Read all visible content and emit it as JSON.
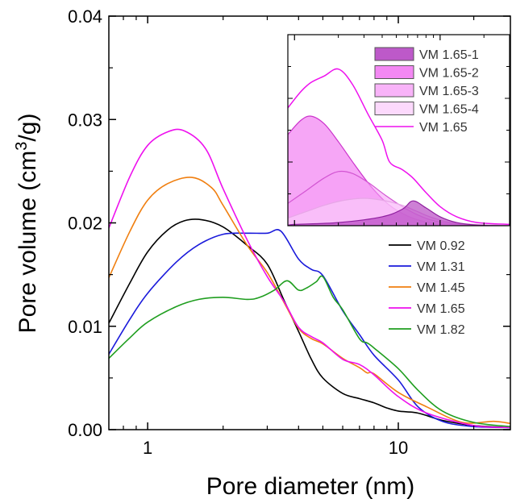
{
  "chart_data": {
    "type": "line",
    "xlabel": "Pore diameter (nm)",
    "ylabel_main": "Pore volume (cm",
    "ylabel_sup": "3",
    "ylabel_end": "/g)",
    "x_scale": "log",
    "xlim": [
      0.7,
      28
    ],
    "ylim": [
      0,
      0.04
    ],
    "x_ticks": [
      {
        "value": 1,
        "label": "1"
      },
      {
        "value": 10,
        "label": "10"
      }
    ],
    "y_ticks": [
      {
        "value": 0.0,
        "label": "0.00"
      },
      {
        "value": 0.01,
        "label": "0.01"
      },
      {
        "value": 0.02,
        "label": "0.02"
      },
      {
        "value": 0.03,
        "label": "0.03"
      },
      {
        "value": 0.04,
        "label": "0.04"
      }
    ],
    "legend_position": "right",
    "series": [
      {
        "name": "VM 0.92",
        "color": "#000000",
        "points": [
          [
            0.7,
            0.0103
          ],
          [
            0.85,
            0.0142
          ],
          [
            1.0,
            0.0172
          ],
          [
            1.2,
            0.0193
          ],
          [
            1.4,
            0.0202
          ],
          [
            1.65,
            0.0203
          ],
          [
            2.0,
            0.0196
          ],
          [
            2.5,
            0.0178
          ],
          [
            3.0,
            0.016
          ],
          [
            3.5,
            0.0125
          ],
          [
            4.0,
            0.0095
          ],
          [
            4.5,
            0.0068
          ],
          [
            5.0,
            0.005
          ],
          [
            6.0,
            0.0035
          ],
          [
            7.0,
            0.003
          ],
          [
            8.0,
            0.0026
          ],
          [
            9.0,
            0.0021
          ],
          [
            10.0,
            0.0018
          ],
          [
            12.0,
            0.0016
          ],
          [
            15.0,
            0.0009
          ],
          [
            20.0,
            0.0004
          ],
          [
            28.0,
            0.0002
          ]
        ]
      },
      {
        "name": "VM 1.31",
        "color": "#1a1adb",
        "points": [
          [
            0.7,
            0.0073
          ],
          [
            0.85,
            0.0107
          ],
          [
            1.0,
            0.0132
          ],
          [
            1.3,
            0.0162
          ],
          [
            1.6,
            0.0179
          ],
          [
            2.0,
            0.0189
          ],
          [
            2.5,
            0.019
          ],
          [
            3.0,
            0.019
          ],
          [
            3.4,
            0.0192
          ],
          [
            4.0,
            0.0165
          ],
          [
            4.5,
            0.0155
          ],
          [
            5.0,
            0.0149
          ],
          [
            6.0,
            0.0115
          ],
          [
            7.0,
            0.0092
          ],
          [
            8.0,
            0.0072
          ],
          [
            10.0,
            0.0048
          ],
          [
            12.0,
            0.0022
          ],
          [
            15.0,
            0.0008
          ],
          [
            20.0,
            0.0003
          ],
          [
            28.0,
            0.0002
          ]
        ]
      },
      {
        "name": "VM 1.45",
        "color": "#f07f10",
        "points": [
          [
            0.7,
            0.0147
          ],
          [
            0.85,
            0.0192
          ],
          [
            1.0,
            0.0222
          ],
          [
            1.2,
            0.0238
          ],
          [
            1.5,
            0.0244
          ],
          [
            1.8,
            0.0234
          ],
          [
            2.0,
            0.0217
          ],
          [
            2.5,
            0.0178
          ],
          [
            3.0,
            0.0152
          ],
          [
            3.5,
            0.0123
          ],
          [
            4.0,
            0.0098
          ],
          [
            4.5,
            0.0088
          ],
          [
            5.0,
            0.0083
          ],
          [
            6.0,
            0.0069
          ],
          [
            7.0,
            0.006
          ],
          [
            7.5,
            0.0055
          ],
          [
            8.0,
            0.0054
          ],
          [
            10.0,
            0.0036
          ],
          [
            13.0,
            0.0022
          ],
          [
            18.0,
            0.0007
          ],
          [
            24.0,
            0.0008
          ],
          [
            28.0,
            0.0006
          ]
        ]
      },
      {
        "name": "VM 1.65",
        "color": "#ee10ee",
        "points": [
          [
            0.7,
            0.0195
          ],
          [
            0.85,
            0.0245
          ],
          [
            1.0,
            0.0275
          ],
          [
            1.2,
            0.0288
          ],
          [
            1.4,
            0.0289
          ],
          [
            1.7,
            0.0272
          ],
          [
            2.0,
            0.0233
          ],
          [
            2.5,
            0.0183
          ],
          [
            3.0,
            0.0148
          ],
          [
            3.5,
            0.0124
          ],
          [
            4.0,
            0.0099
          ],
          [
            4.5,
            0.009
          ],
          [
            5.0,
            0.0084
          ],
          [
            6.0,
            0.0068
          ],
          [
            7.0,
            0.0063
          ],
          [
            8.0,
            0.0053
          ],
          [
            10.0,
            0.0032
          ],
          [
            13.0,
            0.0016
          ],
          [
            20.0,
            0.0004
          ],
          [
            28.0,
            0.0002
          ]
        ]
      },
      {
        "name": "VM 1.82",
        "color": "#1f9e1f",
        "points": [
          [
            0.7,
            0.0069
          ],
          [
            0.85,
            0.0089
          ],
          [
            1.0,
            0.0104
          ],
          [
            1.3,
            0.0119
          ],
          [
            1.6,
            0.0126
          ],
          [
            2.0,
            0.0128
          ],
          [
            2.5,
            0.0126
          ],
          [
            2.8,
            0.0128
          ],
          [
            3.2,
            0.0135
          ],
          [
            3.6,
            0.0144
          ],
          [
            4.0,
            0.0135
          ],
          [
            4.3,
            0.0137
          ],
          [
            4.7,
            0.0143
          ],
          [
            5.0,
            0.0148
          ],
          [
            5.5,
            0.0128
          ],
          [
            6.0,
            0.0116
          ],
          [
            7.0,
            0.0088
          ],
          [
            7.5,
            0.0084
          ],
          [
            8.0,
            0.0079
          ],
          [
            10.0,
            0.0059
          ],
          [
            12.0,
            0.0038
          ],
          [
            15.0,
            0.0018
          ],
          [
            20.0,
            0.0007
          ],
          [
            28.0,
            0.0003
          ]
        ]
      }
    ],
    "inset": {
      "type": "area",
      "x_scale": "log",
      "series": [
        {
          "name": "VM 1.65-1",
          "style": "fill",
          "fill": "#b23cbf",
          "fill_opacity": 0.65,
          "stroke": "#8f1f9f",
          "points": [
            [
              0.9,
              0.0
            ],
            [
              1.0,
              0.0002
            ],
            [
              2.0,
              0.0005
            ],
            [
              4.0,
              0.0014
            ],
            [
              5.5,
              0.0026
            ],
            [
              6.5,
              0.0039
            ],
            [
              8.0,
              0.0028
            ],
            [
              10.0,
              0.0014
            ],
            [
              13.0,
              0.0005
            ],
            [
              18.0,
              0.0001
            ],
            [
              30.0,
              0.0
            ]
          ]
        },
        {
          "name": "VM 1.65-2",
          "style": "fill",
          "fill": "#f06af0",
          "fill_opacity": 0.6,
          "stroke": "#cc33cc",
          "points": [
            [
              0.9,
              0.0143
            ],
            [
              1.1,
              0.0165
            ],
            [
              1.3,
              0.0172
            ],
            [
              1.6,
              0.016
            ],
            [
              2.0,
              0.0132
            ],
            [
              2.6,
              0.0095
            ],
            [
              3.4,
              0.006
            ],
            [
              4.5,
              0.0032
            ],
            [
              6.0,
              0.0015
            ],
            [
              8.0,
              0.0006
            ],
            [
              12.0,
              0.0002
            ],
            [
              30.0,
              0.0
            ]
          ]
        },
        {
          "name": "VM 1.65-3",
          "style": "fill",
          "fill": "#f6a0f6",
          "fill_opacity": 0.6,
          "stroke": "#d255d2",
          "points": [
            [
              0.9,
              0.0035
            ],
            [
              1.2,
              0.0055
            ],
            [
              1.6,
              0.0075
            ],
            [
              2.0,
              0.0085
            ],
            [
              2.5,
              0.0082
            ],
            [
              3.2,
              0.0068
            ],
            [
              4.2,
              0.0048
            ],
            [
              5.5,
              0.003
            ],
            [
              7.0,
              0.0017
            ],
            [
              9.0,
              0.0008
            ],
            [
              13.0,
              0.0003
            ],
            [
              30.0,
              0.0
            ]
          ]
        },
        {
          "name": "VM 1.65-4",
          "style": "fill",
          "fill": "#fbd0fb",
          "fill_opacity": 0.6,
          "stroke": "#e7a6e7",
          "points": [
            [
              0.9,
              0.0012
            ],
            [
              1.2,
              0.0022
            ],
            [
              1.6,
              0.0032
            ],
            [
              2.2,
              0.004
            ],
            [
              3.0,
              0.0043
            ],
            [
              4.0,
              0.004
            ],
            [
              5.5,
              0.0032
            ],
            [
              7.0,
              0.0022
            ],
            [
              9.0,
              0.0012
            ],
            [
              13.0,
              0.0004
            ],
            [
              30.0,
              0.0
            ]
          ]
        },
        {
          "name": "VM 1.65",
          "style": "line",
          "stroke": "#ee10ee",
          "points": [
            [
              0.9,
              0.0185
            ],
            [
              1.1,
              0.021
            ],
            [
              1.3,
              0.0225
            ],
            [
              1.6,
              0.0235
            ],
            [
              2.0,
              0.0246
            ],
            [
              2.5,
              0.0222
            ],
            [
              3.2,
              0.0175
            ],
            [
              4.0,
              0.0134
            ],
            [
              4.5,
              0.01
            ],
            [
              5.5,
              0.0088
            ],
            [
              6.5,
              0.0075
            ],
            [
              8.0,
              0.0052
            ],
            [
              10.0,
              0.003
            ],
            [
              13.0,
              0.0014
            ],
            [
              18.0,
              0.0005
            ],
            [
              30.0,
              0.0002
            ]
          ]
        }
      ]
    }
  }
}
